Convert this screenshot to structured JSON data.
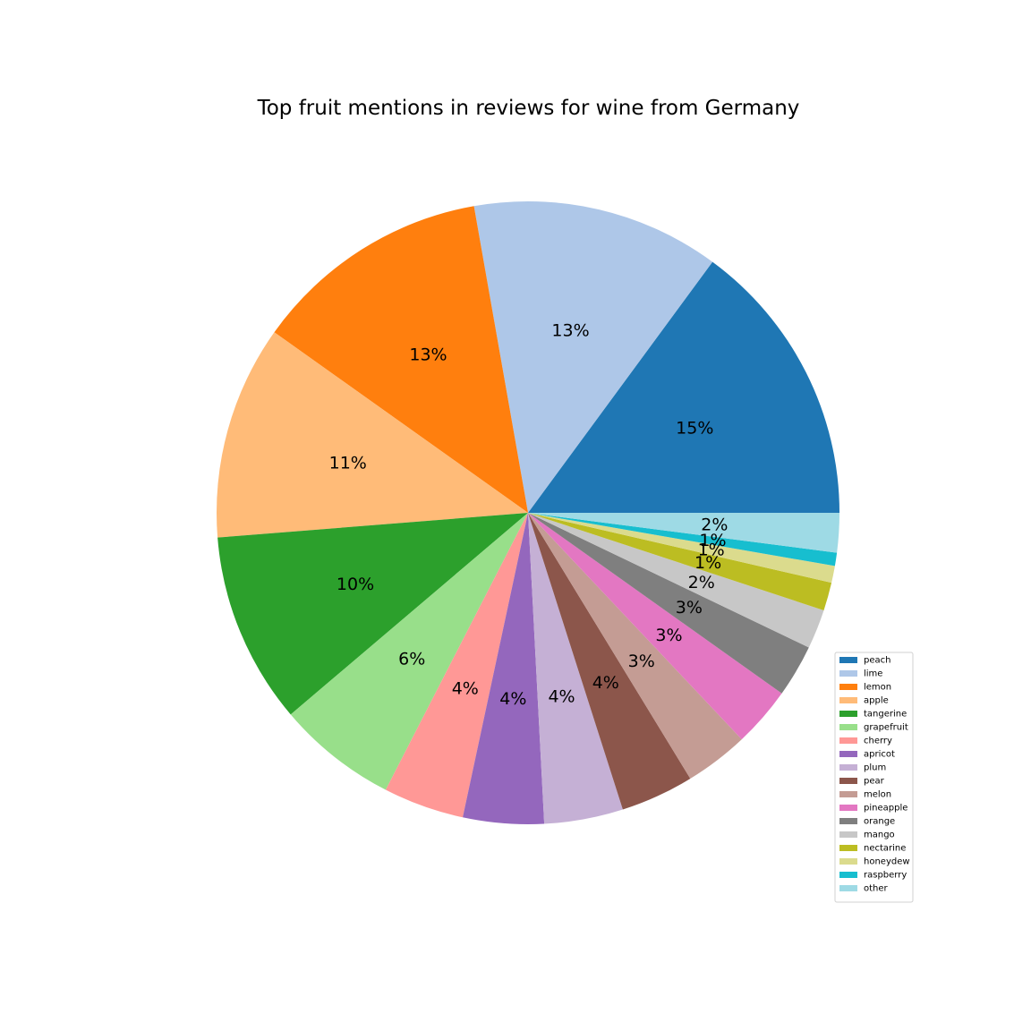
{
  "chart_data": {
    "type": "pie",
    "title": "Top fruit mentions in reviews for wine from Germany",
    "categories": [
      "peach",
      "lime",
      "lemon",
      "apple",
      "tangerine",
      "grapefruit",
      "cherry",
      "apricot",
      "plum",
      "pear",
      "melon",
      "pineapple",
      "orange",
      "mango",
      "nectarine",
      "honeydew",
      "raspberry",
      "other"
    ],
    "values": [
      15.3,
      13.2,
      12.7,
      11.4,
      10.2,
      6.4,
      4.3,
      4.3,
      4.2,
      3.9,
      3.4,
      3.2,
      2.8,
      2.1,
      1.5,
      0.9,
      0.7,
      2.1
    ],
    "labels": [
      "15%",
      "13%",
      "13%",
      "11%",
      "10%",
      "6%",
      "4%",
      "4%",
      "4%",
      "4%",
      "3%",
      "3%",
      "3%",
      "2%",
      "1%",
      "1%",
      "1%",
      "2%"
    ],
    "colors": [
      "#1f77b4",
      "#aec7e8",
      "#ff7f0e",
      "#ffbb78",
      "#2ca02c",
      "#98df8a",
      "#ff9896",
      "#9467bd",
      "#c5b0d5",
      "#8c564b",
      "#c49c94",
      "#e377c2",
      "#7f7f7f",
      "#c7c7c7",
      "#bcbd22",
      "#dbdb8d",
      "#17becf",
      "#9edae5"
    ],
    "start_angle_deg": 0,
    "direction": "counterclockwise",
    "legend_position": "lower-right"
  }
}
